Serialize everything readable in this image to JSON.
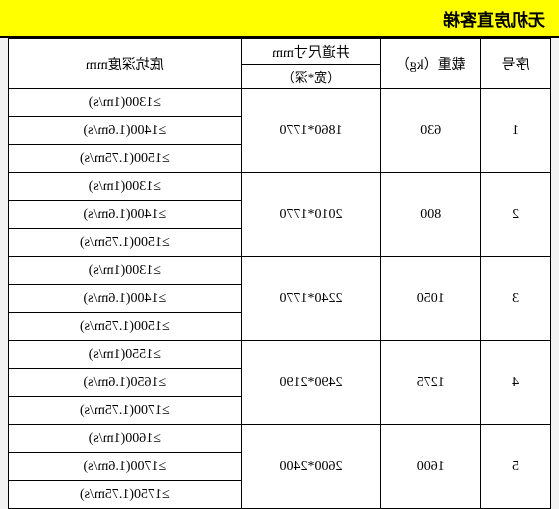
{
  "title": "无机房直客梯",
  "headers": {
    "seq": "序号",
    "load": "载重（kg）",
    "dim_top": "井道尺寸mm",
    "dim_sub": "（宽*深）",
    "pit": "底坑深度mm"
  },
  "rows": [
    {
      "seq": "1",
      "load": "630",
      "dim": "1860*1770",
      "pits": [
        "≥1300(1m/s)",
        "≥1400(1.6m/s)",
        "≥1500(1.75m/s)"
      ]
    },
    {
      "seq": "2",
      "load": "800",
      "dim": "2010*1770",
      "pits": [
        "≥1300(1m/s)",
        "≥1400(1.6m/s)",
        "≥1500(1.75m/s)"
      ]
    },
    {
      "seq": "3",
      "load": "1050",
      "dim": "2240*1770",
      "pits": [
        "≥1300(1m/s)",
        "≥1400(1.6m/s)",
        "≥1500(1.75m/s)"
      ]
    },
    {
      "seq": "4",
      "load": "1275",
      "dim": "2490*2190",
      "pits": [
        "≥1550(1m/s)",
        "≥1650(1.6m/s)",
        "≥1700(1.75m/s)"
      ]
    },
    {
      "seq": "5",
      "load": "1600",
      "dim": "2600*2400",
      "pits": [
        "≥1600(1m/s)",
        "≥1700(1.6m/s)",
        "≥1750(1.75m/s)"
      ]
    }
  ],
  "style": {
    "title_bg": "#ffff00",
    "page_bg": "#f2f2f2",
    "cell_bg": "#ffffff",
    "border": "#000000",
    "mirrored": true
  }
}
